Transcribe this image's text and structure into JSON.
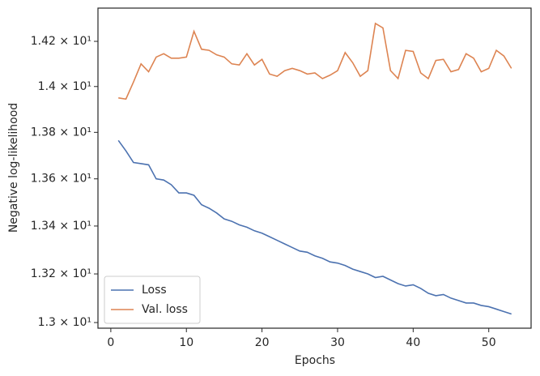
{
  "chart_data": {
    "type": "line",
    "xlabel": "Epochs",
    "ylabel": "Negative log-likelihood",
    "x": [
      1,
      2,
      3,
      4,
      5,
      6,
      7,
      8,
      9,
      10,
      11,
      12,
      13,
      14,
      15,
      16,
      17,
      18,
      19,
      20,
      21,
      22,
      23,
      24,
      25,
      26,
      27,
      28,
      29,
      30,
      31,
      32,
      33,
      34,
      35,
      36,
      37,
      38,
      39,
      40,
      41,
      42,
      43,
      44,
      45,
      46,
      47,
      48,
      49,
      50,
      51,
      52,
      53
    ],
    "series": [
      {
        "name": "Loss",
        "color": "#4c72b0",
        "values": [
          13.765,
          13.72,
          13.67,
          13.665,
          13.66,
          13.6,
          13.595,
          13.575,
          13.54,
          13.54,
          13.53,
          13.49,
          13.475,
          13.455,
          13.43,
          13.42,
          13.405,
          13.395,
          13.38,
          13.37,
          13.355,
          13.34,
          13.325,
          13.31,
          13.295,
          13.29,
          13.275,
          13.265,
          13.25,
          13.245,
          13.235,
          13.22,
          13.21,
          13.2,
          13.185,
          13.19,
          13.175,
          13.16,
          13.15,
          13.155,
          13.14,
          13.12,
          13.11,
          13.115,
          13.1,
          13.09,
          13.08,
          13.08,
          13.07,
          13.065,
          13.055,
          13.045,
          13.035
        ]
      },
      {
        "name": "Val. loss",
        "color": "#dd8452",
        "values": [
          13.95,
          13.945,
          14.02,
          14.1,
          14.065,
          14.13,
          14.145,
          14.125,
          14.125,
          14.13,
          14.245,
          14.165,
          14.16,
          14.14,
          14.13,
          14.1,
          14.095,
          14.145,
          14.095,
          14.12,
          14.055,
          14.045,
          14.07,
          14.08,
          14.07,
          14.055,
          14.06,
          14.035,
          14.05,
          14.07,
          14.15,
          14.105,
          14.045,
          14.07,
          14.28,
          14.26,
          14.07,
          14.035,
          14.16,
          14.155,
          14.06,
          14.035,
          14.115,
          14.12,
          14.065,
          14.075,
          14.145,
          14.125,
          14.065,
          14.08,
          14.16,
          14.135,
          14.08
        ]
      }
    ],
    "xlim": [
      -1.7,
      55.6
    ],
    "ylim": [
      12.977,
      14.349
    ],
    "yscale": "log",
    "xticks": [
      0,
      10,
      20,
      30,
      40,
      50
    ],
    "yticks": [
      {
        "value": 13.0,
        "label": "1.3 × 10¹"
      },
      {
        "value": 13.2,
        "label": "1.32 × 10¹"
      },
      {
        "value": 13.4,
        "label": "1.34 × 10¹"
      },
      {
        "value": 13.6,
        "label": "1.36 × 10¹"
      },
      {
        "value": 13.8,
        "label": "1.38 × 10¹"
      },
      {
        "value": 14.0,
        "label": "1.4 × 10¹"
      },
      {
        "value": 14.2,
        "label": "1.42 × 10¹"
      }
    ],
    "legend": "lower left"
  }
}
